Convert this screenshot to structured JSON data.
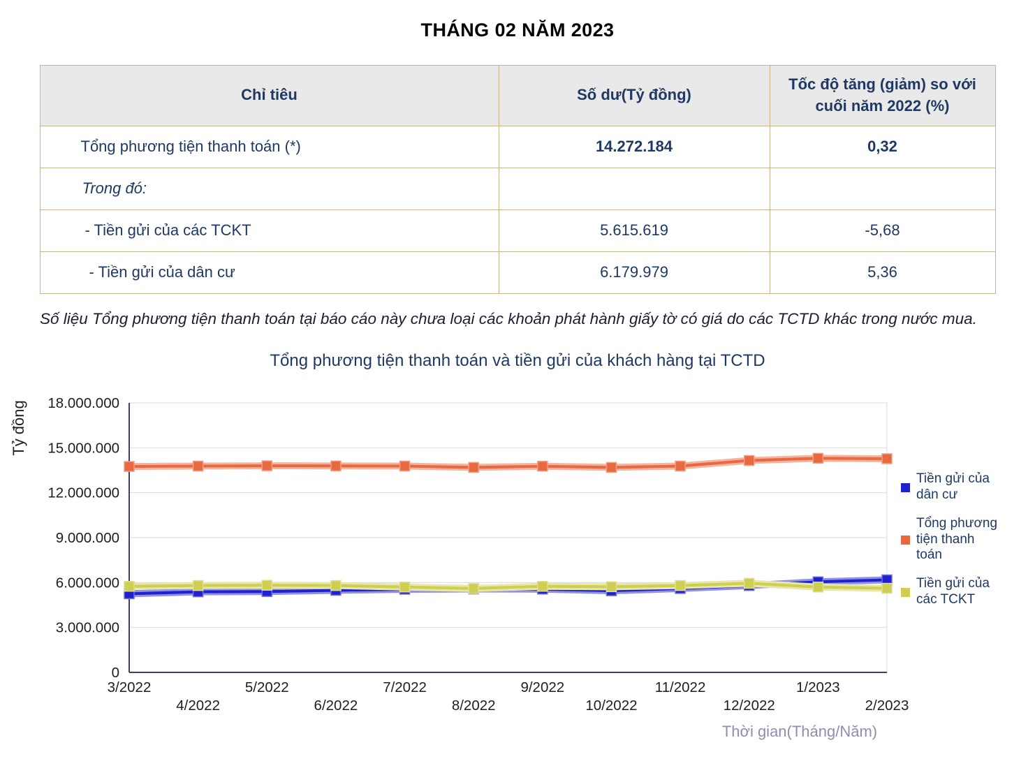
{
  "page_title": "THÁNG 02 NĂM 2023",
  "colors": {
    "navy_text": "#1F3864",
    "accent_orange": "#BE7014",
    "table_border": "#C6B687",
    "header_bg": "#E9E9E9"
  },
  "table": {
    "headers": [
      "Chỉ tiêu",
      "Số dư(Tỷ đồng)",
      "Tốc độ tăng (giảm) so với cuối năm 2022 (%)"
    ],
    "rows": [
      {
        "label": "Tổng phương tiện thanh toán (*)",
        "value": "14.272.184",
        "change": "0,32"
      },
      {
        "label": "Trong đó:",
        "value": "",
        "change": ""
      },
      {
        "label": "- Tiền gửi của các TCKT",
        "value": "5.615.619",
        "change": "-5,68"
      },
      {
        "label": "- Tiền gửi của dân cư",
        "value": "6.179.979",
        "change": "5,36"
      }
    ]
  },
  "note": "Số liệu Tổng phương tiện thanh toán tại báo cáo này chưa loại các khoản phát hành giấy tờ có giá do các TCTD khác trong nước mua.",
  "chart_data": {
    "type": "line",
    "title": "Tổng phương tiện thanh toán và tiền gửi của khách hàng tại TCTD",
    "ylabel": "Tỷ đồng",
    "xlabel": "Thời gian(Tháng/Năm)",
    "ylim": [
      0,
      18000000
    ],
    "ytick_step": 3000000,
    "grid": true,
    "legend_position": "right",
    "categories": [
      "3/2022",
      "4/2022",
      "5/2022",
      "6/2022",
      "7/2022",
      "8/2022",
      "9/2022",
      "10/2022",
      "11/2022",
      "12/2022",
      "1/2023",
      "2/2023"
    ],
    "series": [
      {
        "name": "Tiền gửi của dân cư",
        "color": "#2020CF",
        "values": [
          5250000,
          5380000,
          5400000,
          5480000,
          5550000,
          5570000,
          5560000,
          5450000,
          5600000,
          5800000,
          6050000,
          6179979
        ]
      },
      {
        "name": "Tổng phương tiện thanh toán",
        "color": "#E8683F",
        "values": [
          13750000,
          13780000,
          13800000,
          13790000,
          13780000,
          13690000,
          13770000,
          13690000,
          13780000,
          14150000,
          14300000,
          14272184
        ]
      },
      {
        "name": "Tiền gửi của các TCKT",
        "color": "#CDCE52",
        "values": [
          5750000,
          5800000,
          5820000,
          5800000,
          5700000,
          5600000,
          5750000,
          5720000,
          5800000,
          5950000,
          5700000,
          5615619
        ]
      }
    ]
  }
}
